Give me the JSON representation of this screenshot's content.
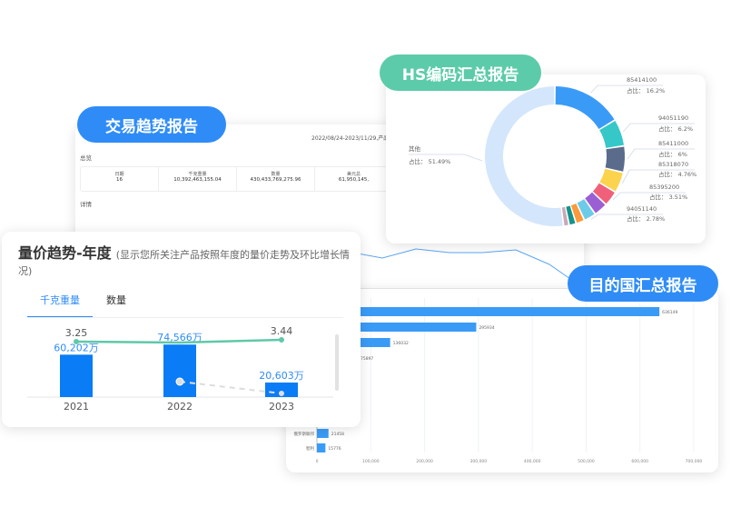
{
  "trade": {
    "badge": "交易趋势报告",
    "range": "2022/08/24-2023/11/29,产品编",
    "overview": "总览",
    "detail": "详情",
    "stats": [
      {
        "label": "日期",
        "value": "16"
      },
      {
        "label": "千克重量",
        "value": "10,392,463,155.04"
      },
      {
        "label": "数量",
        "value": "430,433,769,275.96"
      },
      {
        "label": "美元总",
        "value": "61,950,145,"
      }
    ]
  },
  "hs": {
    "badge": "HS编码汇总报告",
    "colors": {
      "accent": "#5ccba9"
    },
    "slices": [
      {
        "code": "85414100",
        "pct": 16.2,
        "label": "占比： 16.2%",
        "color": "#3a9bf7"
      },
      {
        "code": "94051190",
        "pct": 6.2,
        "label": "占比： 6.2%",
        "color": "#36c8c8"
      },
      {
        "code": "85411000",
        "pct": 6,
        "label": "占比： 6%",
        "color": "#5a6b8c"
      },
      {
        "code": "85318070",
        "pct": 4.76,
        "label": "占比： 4.76%",
        "color": "#fcd34d"
      },
      {
        "code": "85395200",
        "pct": 3.51,
        "label": "占比： 3.51%",
        "color": "#f0607a"
      },
      {
        "code": "",
        "pct": 3.2,
        "label": "",
        "color": "#9b5fd4"
      },
      {
        "code": "94051140",
        "pct": 2.78,
        "label": "占比： 2.78%",
        "color": "#6ccbe8"
      },
      {
        "code": "",
        "pct": 2.0,
        "label": "",
        "color": "#fb9a3c"
      },
      {
        "code": "",
        "pct": 1.6,
        "label": "",
        "color": "#13938a"
      },
      {
        "code": "",
        "pct": 1.26,
        "label": "",
        "color": "#c9a9b6"
      },
      {
        "code": "其他",
        "pct": 51.49,
        "label": "占比： 51.49%",
        "color": "#d4e6fb"
      }
    ]
  },
  "dest": {
    "badge": "目的国汇总报告",
    "bars": [
      {
        "label": "",
        "value": 636149
      },
      {
        "label": "",
        "value": 295934
      },
      {
        "label": "",
        "value": 136032
      },
      {
        "label": "",
        "value": 75897
      },
      {
        "label": "俄罗斯联邦",
        "value": 21458
      },
      {
        "label": "智利",
        "value": 15776
      }
    ],
    "ticks": [
      "0",
      "100,000",
      "200,000",
      "300,000",
      "400,000",
      "500,000",
      "600,000",
      "700,000"
    ],
    "xmax": 700000
  },
  "trend": {
    "title": "量价趋势-年度",
    "subtitle": "(显示您所关注产品按照年度的量价走势及环比增长情况)",
    "tabs": [
      "千克重量",
      "数量"
    ],
    "years": [
      "2021",
      "2022",
      "2023"
    ],
    "bar_labels": [
      "60,202万",
      "74,566万",
      "20,603万"
    ],
    "bar_values": [
      60202,
      74566,
      20603
    ],
    "price_labels": [
      "3.25",
      "",
      "3.44"
    ],
    "colors": {
      "bar": "#0a7cf5",
      "line": "#5fc8a8"
    }
  }
}
